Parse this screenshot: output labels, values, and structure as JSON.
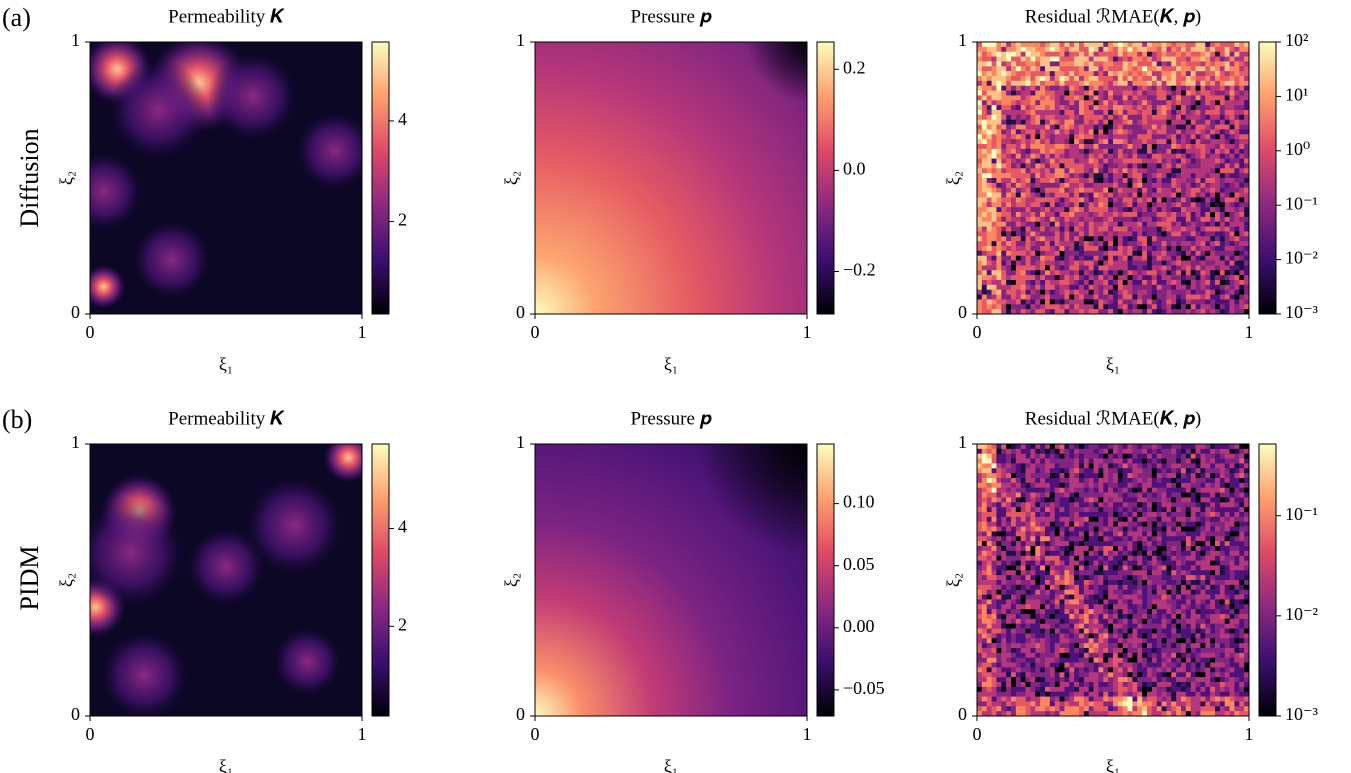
{
  "rows": [
    {
      "label": "(a)",
      "title": "Diffusion"
    },
    {
      "label": "(b)",
      "title": "PIDM"
    }
  ],
  "chart_data": [
    {
      "type": "heatmap",
      "title": "Permeability 𝑲",
      "xlabel": "ξ₁",
      "ylabel": "ξ₂",
      "xlim": [
        0,
        1
      ],
      "ylim": [
        0,
        1
      ],
      "xticks": [
        0,
        1
      ],
      "yticks": [
        0,
        1
      ],
      "colormap": "magma",
      "colorbar": {
        "lim": [
          0.16,
          5.57
        ],
        "ticks": [
          2,
          4
        ],
        "log_scale": false
      }
    },
    {
      "type": "heatmap",
      "title": "Pressure 𝒑",
      "xlabel": "ξ₁",
      "ylabel": "ξ₂",
      "xlim": [
        0,
        1
      ],
      "ylim": [
        0,
        1
      ],
      "xticks": [
        0,
        1
      ],
      "yticks": [
        0,
        1
      ],
      "colormap": "magma",
      "colorbar": {
        "lim": [
          -0.284,
          0.254
        ],
        "ticks": [
          {
            "value": -0.2,
            "label": "−0.2"
          },
          {
            "value": 0,
            "label": "0.0"
          },
          0.2
        ],
        "log_scale": false
      }
    },
    {
      "type": "heatmap",
      "title": "Residual ℛMAE(𝑲, 𝒑)",
      "xlabel": "ξ₁",
      "ylabel": "ξ₂",
      "xlim": [
        0,
        1
      ],
      "ylim": [
        0,
        1
      ],
      "xticks": [
        0,
        1
      ],
      "yticks": [
        0,
        1
      ],
      "colormap": "magma",
      "colorbar": {
        "lim": [
          0.001,
          100
        ],
        "ticks": [
          {
            "value": 0.001,
            "label": "10⁻³"
          },
          {
            "value": 0.01,
            "label": "10⁻²"
          },
          {
            "value": 0.1,
            "label": "10⁻¹"
          },
          {
            "value": 1,
            "label": "10⁰"
          },
          {
            "value": 10,
            "label": "10¹"
          },
          {
            "value": 100,
            "label": "10²"
          }
        ],
        "log_scale": true
      }
    },
    {
      "type": "heatmap",
      "title": "Permeability 𝑲",
      "xlabel": "ξ₁",
      "ylabel": "ξ₂",
      "xlim": [
        0,
        1
      ],
      "ylim": [
        0,
        1
      ],
      "xticks": [
        0,
        1
      ],
      "yticks": [
        0,
        1
      ],
      "colormap": "magma",
      "colorbar": {
        "lim": [
          0.165,
          5.73
        ],
        "ticks": [
          2,
          4
        ],
        "log_scale": false
      }
    },
    {
      "type": "heatmap",
      "title": "Pressure 𝒑",
      "xlabel": "ξ₁",
      "ylabel": "ξ₂",
      "xlim": [
        0,
        1
      ],
      "ylim": [
        0,
        1
      ],
      "xticks": [
        0,
        1
      ],
      "yticks": [
        0,
        1
      ],
      "colormap": "magma",
      "colorbar": {
        "lim": [
          -0.071,
          0.148
        ],
        "ticks": [
          {
            "value": -0.05,
            "label": "−0.05"
          },
          {
            "value": 0,
            "label": "0.00"
          },
          0.05,
          {
            "value": 0.1,
            "label": "0.10"
          }
        ],
        "log_scale": false
      }
    },
    {
      "type": "heatmap",
      "title": "Residual ℛMAE(𝑲, 𝒑)",
      "xlabel": "ξ₁",
      "ylabel": "ξ₂",
      "xlim": [
        0,
        1
      ],
      "ylim": [
        0,
        1
      ],
      "xticks": [
        0,
        1
      ],
      "yticks": [
        0,
        1
      ],
      "colormap": "magma",
      "colorbar": {
        "lim": [
          0.001,
          0.52
        ],
        "ticks": [
          {
            "value": 0.001,
            "label": "10⁻³"
          },
          {
            "value": 0.01,
            "label": "10⁻²"
          },
          {
            "value": 0.1,
            "label": "10⁻¹"
          }
        ],
        "log_scale": true
      }
    }
  ]
}
